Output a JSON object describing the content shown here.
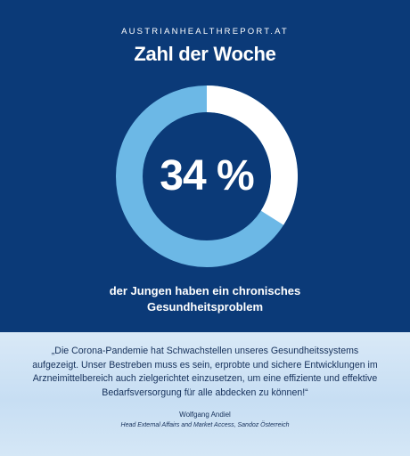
{
  "header": {
    "source": "AUSTRIANHEALTHREPORT.AT",
    "title": "Zahl der Woche"
  },
  "stat": {
    "value_text": "34 %",
    "fraction": 0.34,
    "caption_lines": [
      "der Jungen haben ein chronisches",
      "Gesundheitsproblem"
    ]
  },
  "quote": {
    "lines": [
      "„Die Corona-Pandemie hat Schwachstellen unseres Gesundheitssystems",
      "aufgezeigt. Unser Bestreben muss es sein, erprobte und sichere Entwicklungen im",
      "Arzneimittelbereich auch zielgerichtet einzusetzen, um eine effiziente und effektive",
      "Bedarfsversorgung für alle abdecken zu können!“"
    ],
    "author": "Wolfgang Andiel",
    "role": "Head External Affairs and Market Access, Sandoz Österreich"
  },
  "colors": {
    "background": "#0b3a78",
    "ring_base": "#6cb8e6",
    "ring_highlight": "#ffffff",
    "quote_background": "#d3e6f5"
  }
}
